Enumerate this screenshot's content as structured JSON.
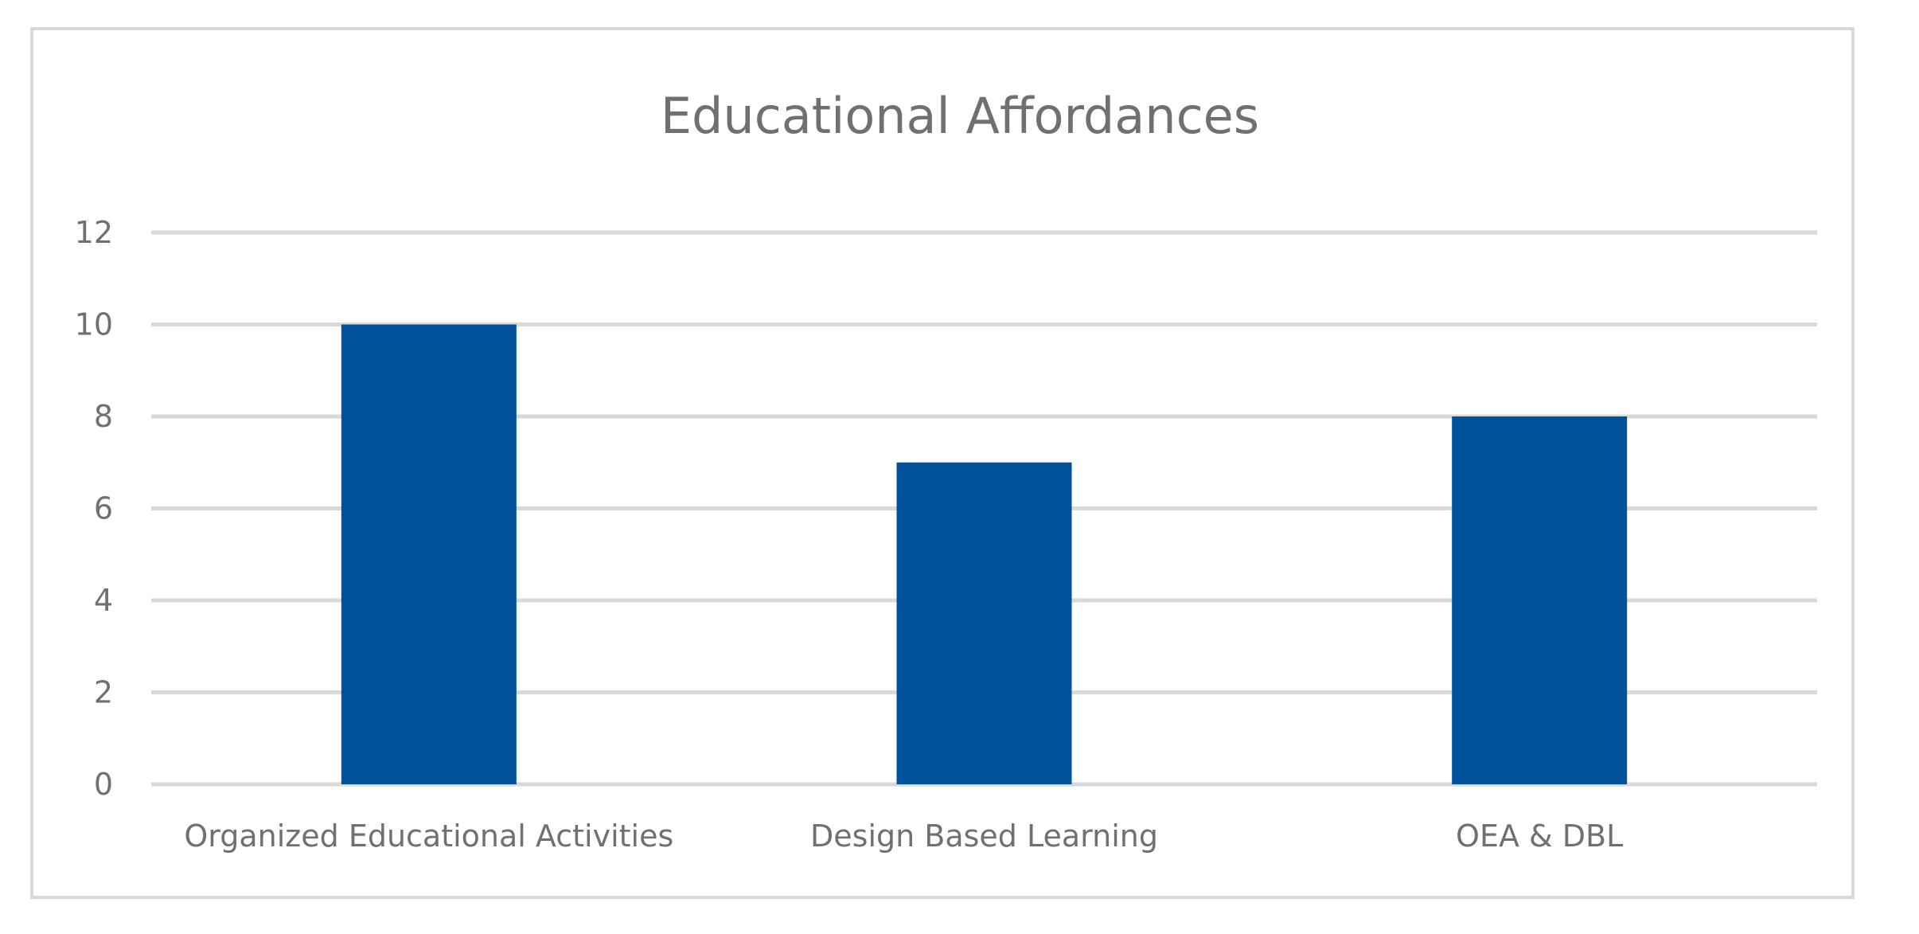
{
  "chart_data": {
    "type": "bar",
    "title": "Educational Affordances",
    "xlabel": "",
    "ylabel": "",
    "categories": [
      "Organized Educational Activities",
      "Design Based Learning",
      "OEA & DBL"
    ],
    "values": [
      10,
      7,
      8
    ],
    "ylim": [
      0,
      12
    ],
    "yticks": [
      0,
      2,
      4,
      6,
      8,
      10,
      12
    ],
    "grid": true,
    "legend": "none",
    "bar_color": "#00539b",
    "grid_color": "#d9d9d9",
    "text_color": "#707070"
  }
}
